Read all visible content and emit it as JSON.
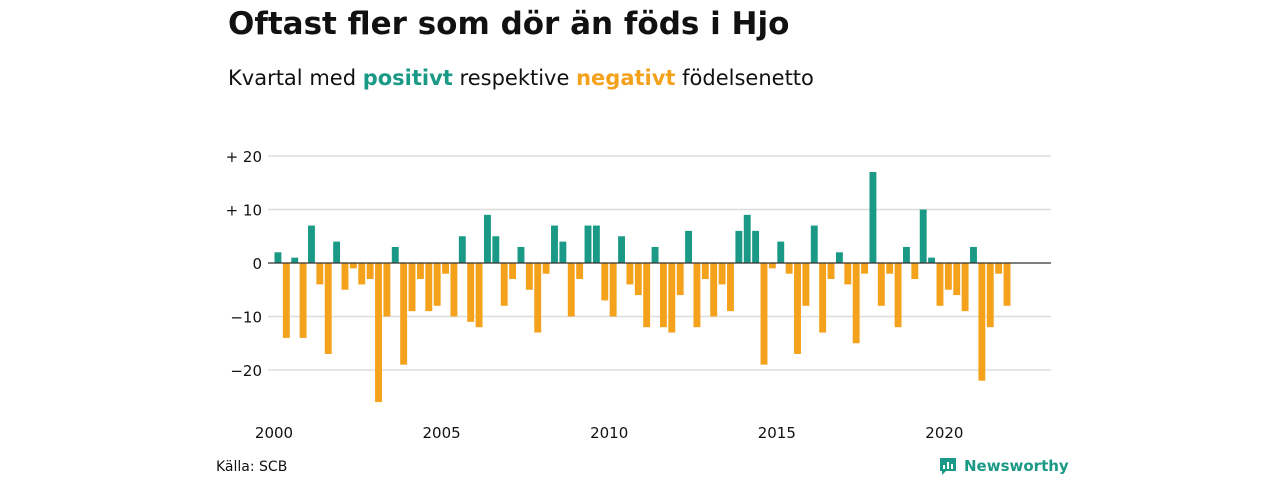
{
  "title": "Oftast fler som dör än föds i Hjo",
  "subtitle": {
    "prefix": "Kvartal med",
    "positive_word": "positivt",
    "middle": "respektive",
    "negative_word": "negativt",
    "suffix": "födelsenetto"
  },
  "source": "Källa: SCB",
  "brand": "Newsworthy",
  "colors": {
    "positive": "#1a9a86",
    "negative": "#f4a11c",
    "grid": "#dddddd",
    "axis": "#333333"
  },
  "chart_data": {
    "type": "bar",
    "x_start": "2000 Q1",
    "x_ticks": [
      2000,
      2005,
      2010,
      2015,
      2020
    ],
    "y_ticks": [
      20,
      10,
      0,
      -10,
      -20
    ],
    "y_tick_labels": [
      "+ 20",
      "+ 10",
      "0",
      "−10",
      "−20"
    ],
    "ylim": [
      -27,
      21
    ],
    "grid": true,
    "values": [
      2,
      -14,
      1,
      -14,
      7,
      -4,
      -17,
      4,
      -5,
      -1,
      -4,
      -3,
      -26,
      -10,
      3,
      -19,
      -9,
      -3,
      -9,
      -8,
      -2,
      -10,
      5,
      -11,
      -12,
      9,
      5,
      -8,
      -3,
      3,
      -5,
      -13,
      -2,
      7,
      4,
      -10,
      -3,
      7,
      7,
      -7,
      -10,
      5,
      -4,
      -6,
      -12,
      3,
      -12,
      -13,
      -6,
      6,
      -12,
      -3,
      -10,
      -4,
      -9,
      6,
      9,
      6,
      -19,
      -1,
      4,
      -2,
      -17,
      -8,
      7,
      -13,
      -3,
      2,
      -4,
      -15,
      -2,
      17,
      -8,
      -2,
      -12,
      3,
      -3,
      10,
      1,
      -8,
      -5,
      -6,
      -9,
      3,
      -22,
      -12,
      -2,
      -8
    ]
  }
}
